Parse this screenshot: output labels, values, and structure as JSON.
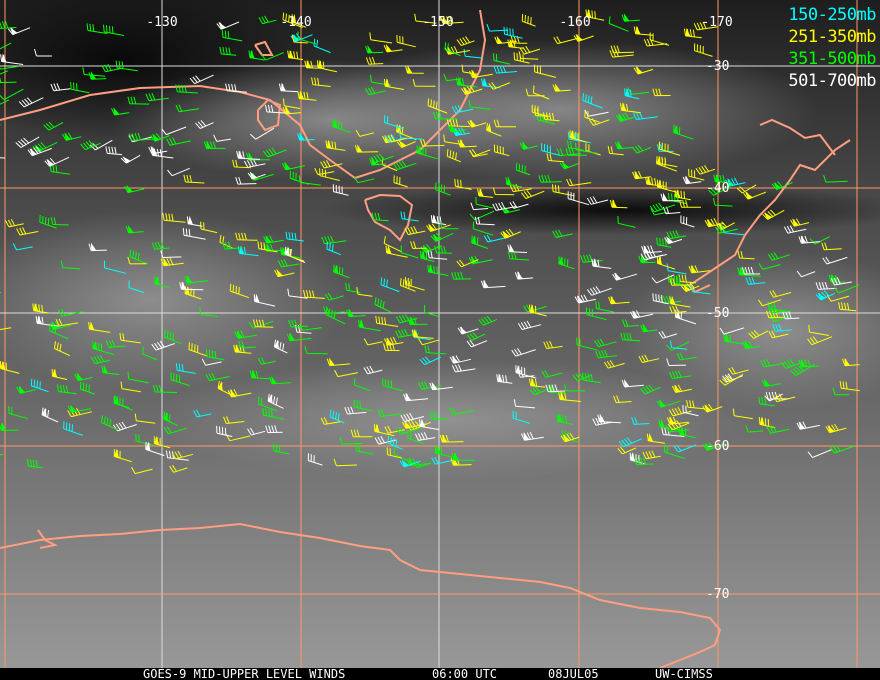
{
  "longitude_labels": [
    "-130",
    "-140",
    "-150",
    "-160",
    "-170"
  ],
  "latitude_labels": [
    "-30",
    "-40",
    "-50",
    "-60",
    "-70"
  ],
  "legend": [
    {
      "label": "150-250mb",
      "color": "#00ffff"
    },
    {
      "label": "251-350mb",
      "color": "#ffff00"
    },
    {
      "label": "351-500mb",
      "color": "#00ff00"
    },
    {
      "label": "501-700mb",
      "color": "#ffffff"
    }
  ],
  "footer": {
    "product": "GOES-9 MID-UPPER LEVEL WINDS",
    "time": "06:00 UTC",
    "date": "08JUL05",
    "source": "UW-CIMSS"
  },
  "colors": {
    "grid_orange": "#ff9966",
    "grid_white": "#dddddd",
    "coastline": "#ff9e80"
  }
}
